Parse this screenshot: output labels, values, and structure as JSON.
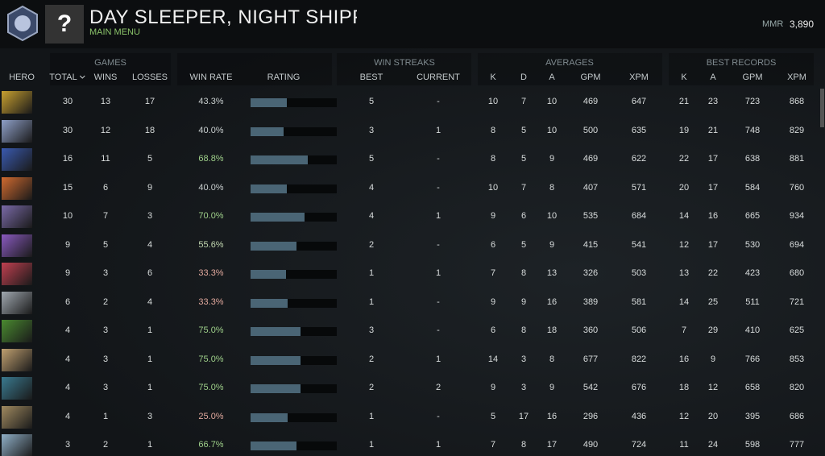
{
  "header": {
    "title": "DAY SLEEPER, NIGHT SHIPPER",
    "subtitle": "MAIN MENU",
    "avatar": "?",
    "mmr_label": "MMR",
    "mmr": "3,890"
  },
  "groups": [
    "GAMES",
    "WIN STREAKS",
    "AVERAGES",
    "BEST RECORDS"
  ],
  "columns": [
    "HERO",
    "TOTAL",
    "WINS",
    "LOSSES",
    "WIN RATE",
    "RATING",
    "BEST",
    "CURRENT",
    "K",
    "D",
    "A",
    "GPM",
    "XPM",
    "K",
    "A",
    "GPM",
    "XPM"
  ],
  "rows": [
    {
      "cells": [
        30,
        13,
        17,
        "43.3%",
        5,
        "-",
        10,
        7,
        10,
        469,
        647,
        21,
        23,
        723,
        868
      ],
      "rating": 0.42,
      "win_rate_color": "#c9cfcf"
    },
    {
      "cells": [
        30,
        12,
        18,
        "40.0%",
        3,
        1,
        8,
        5,
        10,
        500,
        635,
        19,
        21,
        748,
        829
      ],
      "rating": 0.38,
      "win_rate_color": "#c9cfcf"
    },
    {
      "cells": [
        16,
        11,
        5,
        "68.8%",
        5,
        "-",
        8,
        5,
        9,
        469,
        622,
        22,
        17,
        638,
        881
      ],
      "rating": 0.66,
      "win_rate_color": "#9fd08a"
    },
    {
      "cells": [
        15,
        6,
        9,
        "40.0%",
        4,
        "-",
        10,
        7,
        8,
        407,
        571,
        20,
        17,
        584,
        760
      ],
      "rating": 0.42,
      "win_rate_color": "#c9cfcf"
    },
    {
      "cells": [
        10,
        7,
        3,
        "70.0%",
        4,
        1,
        9,
        6,
        10,
        535,
        684,
        14,
        16,
        665,
        934
      ],
      "rating": 0.63,
      "win_rate_color": "#9fd08a"
    },
    {
      "cells": [
        9,
        5,
        4,
        "55.6%",
        2,
        "-",
        6,
        5,
        9,
        415,
        541,
        12,
        17,
        530,
        694
      ],
      "rating": 0.53,
      "win_rate_color": "#c2d8b0"
    },
    {
      "cells": [
        9,
        3,
        6,
        "33.3%",
        1,
        1,
        7,
        8,
        13,
        326,
        503,
        13,
        22,
        423,
        680
      ],
      "rating": 0.41,
      "win_rate_color": "#e0a89c"
    },
    {
      "cells": [
        6,
        2,
        4,
        "33.3%",
        1,
        "-",
        9,
        9,
        16,
        389,
        581,
        14,
        25,
        511,
        721
      ],
      "rating": 0.43,
      "win_rate_color": "#e0a89c"
    },
    {
      "cells": [
        4,
        3,
        1,
        "75.0%",
        3,
        "-",
        6,
        8,
        18,
        360,
        506,
        7,
        29,
        410,
        625
      ],
      "rating": 0.58,
      "win_rate_color": "#9fd08a"
    },
    {
      "cells": [
        4,
        3,
        1,
        "75.0%",
        2,
        1,
        14,
        3,
        8,
        677,
        822,
        16,
        9,
        766,
        853
      ],
      "rating": 0.58,
      "win_rate_color": "#9fd08a"
    },
    {
      "cells": [
        4,
        3,
        1,
        "75.0%",
        2,
        2,
        9,
        3,
        9,
        542,
        676,
        18,
        12,
        658,
        820
      ],
      "rating": 0.58,
      "win_rate_color": "#9fd08a"
    },
    {
      "cells": [
        4,
        1,
        3,
        "25.0%",
        1,
        "-",
        5,
        17,
        16,
        296,
        436,
        12,
        20,
        395,
        686
      ],
      "rating": 0.43,
      "win_rate_color": "#e0a89c"
    },
    {
      "cells": [
        3,
        2,
        1,
        "66.7%",
        1,
        1,
        7,
        8,
        17,
        490,
        724,
        11,
        24,
        598,
        777
      ],
      "rating": 0.53,
      "win_rate_color": "#9fd08a"
    }
  ]
}
